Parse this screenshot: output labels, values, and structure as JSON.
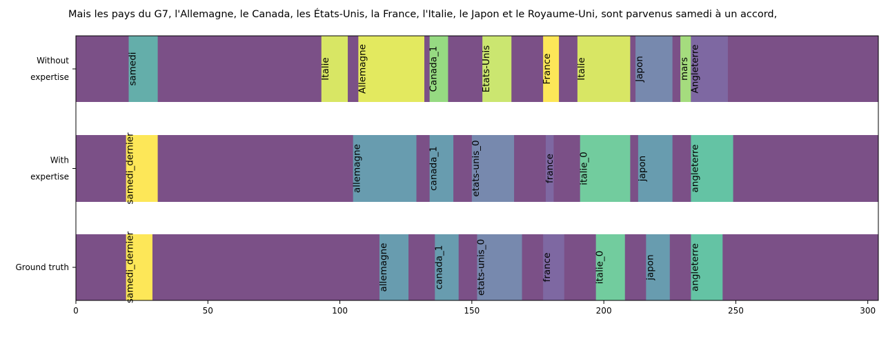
{
  "chart_data": {
    "type": "bar",
    "orientation": "horizontal-segments",
    "title": "Mais les pays du G7, l'Allemagne, le Canada, les États-Unis, la France, l'Italie, le Japon et le Royaume-Uni, sont parvenus samedi à un accord,",
    "xlim": [
      0,
      304
    ],
    "x_ticks": [
      "0",
      "50",
      "100",
      "150",
      "200",
      "250",
      "300"
    ],
    "x_tick_values": [
      0,
      50,
      100,
      150,
      200,
      250,
      300
    ],
    "background_color": "#7b5087",
    "grid": false,
    "rows": [
      {
        "label_lines": [
          "Without",
          "expertise"
        ],
        "segments": [
          {
            "start": 20,
            "end": 31,
            "label": "samedi",
            "color": "#64aeaa"
          },
          {
            "start": 93,
            "end": 103,
            "label": "Italie",
            "color": "#d8e664"
          },
          {
            "start": 107,
            "end": 132,
            "label": "Allemagne",
            "color": "#e3e95f"
          },
          {
            "start": 134,
            "end": 141,
            "label": "Canada_1",
            "color": "#96da82"
          },
          {
            "start": 154,
            "end": 165,
            "label": "Etats-Unis",
            "color": "#cbe670"
          },
          {
            "start": 177,
            "end": 183,
            "label": "France",
            "color": "#fde758"
          },
          {
            "start": 190,
            "end": 210,
            "label": "Italie",
            "color": "#d8e664"
          },
          {
            "start": 212,
            "end": 226,
            "label": "Japon",
            "color": "#7789ae"
          },
          {
            "start": 229,
            "end": 233,
            "label": "mars",
            "color": "#a5dc7e"
          },
          {
            "start": 233,
            "end": 247,
            "label": "Angleterre",
            "color": "#7e68a2"
          }
        ]
      },
      {
        "label_lines": [
          "With",
          "expertise"
        ],
        "segments": [
          {
            "start": 19,
            "end": 31,
            "label": "samedi_dernier",
            "color": "#fde758"
          },
          {
            "start": 105,
            "end": 129,
            "label": "allemagne",
            "color": "#689caf"
          },
          {
            "start": 134,
            "end": 143,
            "label": "canada_1",
            "color": "#689caf"
          },
          {
            "start": 150,
            "end": 166,
            "label": "etats-unis_0",
            "color": "#7789ae"
          },
          {
            "start": 178,
            "end": 181,
            "label": "france",
            "color": "#7e68a2"
          },
          {
            "start": 191,
            "end": 210,
            "label": "italie_0",
            "color": "#72cc9e"
          },
          {
            "start": 213,
            "end": 226,
            "label": "japon",
            "color": "#689caf"
          },
          {
            "start": 233,
            "end": 249,
            "label": "angleterre",
            "color": "#64c3a4"
          }
        ]
      },
      {
        "label_lines": [
          "Ground truth"
        ],
        "segments": [
          {
            "start": 19,
            "end": 29,
            "label": "samedi_dernier",
            "color": "#fde758"
          },
          {
            "start": 115,
            "end": 126,
            "label": "allemagne",
            "color": "#689caf"
          },
          {
            "start": 136,
            "end": 145,
            "label": "canada_1",
            "color": "#689caf"
          },
          {
            "start": 152,
            "end": 169,
            "label": "etats-unis_0",
            "color": "#7789ae"
          },
          {
            "start": 177,
            "end": 185,
            "label": "france",
            "color": "#7e68a2"
          },
          {
            "start": 197,
            "end": 208,
            "label": "italie_0",
            "color": "#72cc9e"
          },
          {
            "start": 216,
            "end": 225,
            "label": "japon",
            "color": "#689caf"
          },
          {
            "start": 233,
            "end": 245,
            "label": "angleterre",
            "color": "#64c3a4"
          }
        ]
      }
    ]
  }
}
